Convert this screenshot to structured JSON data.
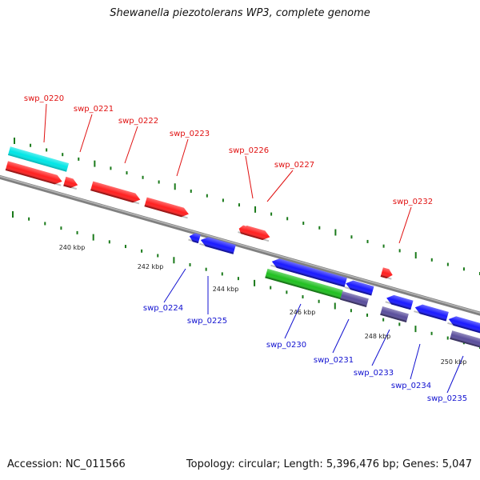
{
  "title": "Shewanella piezotolerans WP3, complete genome",
  "footer": {
    "accession": "Accession: NC_011566",
    "topology": "Topology: circular; Length: 5,396,476 bp; Genes: 5,047"
  },
  "colors": {
    "forward_gene": "#ff2020",
    "reverse_gene": "#1a1aff",
    "rna": "#20c020",
    "pseudo": "#5a4e9c",
    "highlight": "#00e6e6",
    "backbone": "#808080",
    "tick": "#1a7a1a",
    "forward_label": "#e01010",
    "reverse_label": "#1010d0"
  },
  "scale_labels": [
    "240 kbp",
    "242 kbp",
    "244 kbp",
    "246 kbp",
    "248 kbp",
    "250 kbp"
  ],
  "forward_genes": [
    "swp_0220",
    "swp_0221",
    "swp_0222",
    "swp_0223",
    "swp_0226",
    "swp_0227",
    "swp_0232"
  ],
  "reverse_genes": [
    "swp_0224",
    "swp_0225",
    "swp_0230",
    "swp_0231",
    "swp_0233",
    "swp_0234",
    "swp_0235"
  ]
}
